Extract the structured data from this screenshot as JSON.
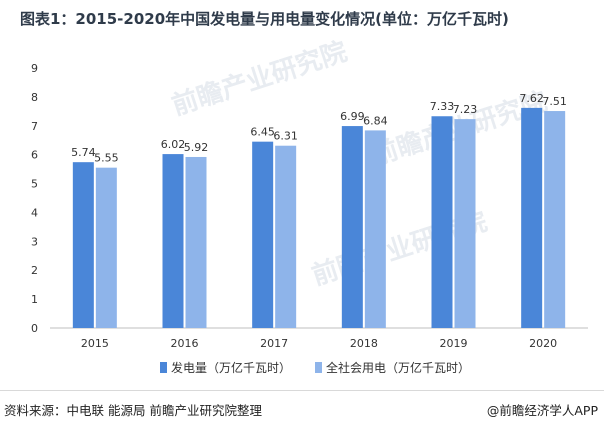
{
  "title": "图表1：2015-2020年中国发电量与用电量变化情况(单位：万亿千瓦时)",
  "chart_data": {
    "type": "bar",
    "categories": [
      "2015",
      "2016",
      "2017",
      "2018",
      "2019",
      "2020"
    ],
    "series": [
      {
        "name": "发电量（万亿千瓦时）",
        "values": [
          5.74,
          6.02,
          6.45,
          6.99,
          7.33,
          7.62
        ],
        "color": "#4a86d8"
      },
      {
        "name": "全社会用电（万亿千瓦时）",
        "values": [
          5.55,
          5.92,
          6.31,
          6.84,
          7.23,
          7.51
        ],
        "color": "#8eb4ea"
      }
    ],
    "ylim": [
      0,
      9
    ],
    "yticks": [
      "0",
      "1",
      "2",
      "3",
      "4",
      "5",
      "6",
      "7",
      "8",
      "9"
    ],
    "grid": false,
    "legend_position": "bottom"
  },
  "footer": {
    "source": "资料来源：中电联 能源局 前瞻产业研究院整理",
    "brand": "@前瞻经济学人APP"
  },
  "watermark": "前瞻产业研究院",
  "colors": {
    "axis": "#bfbfbf",
    "label": "#333333"
  }
}
